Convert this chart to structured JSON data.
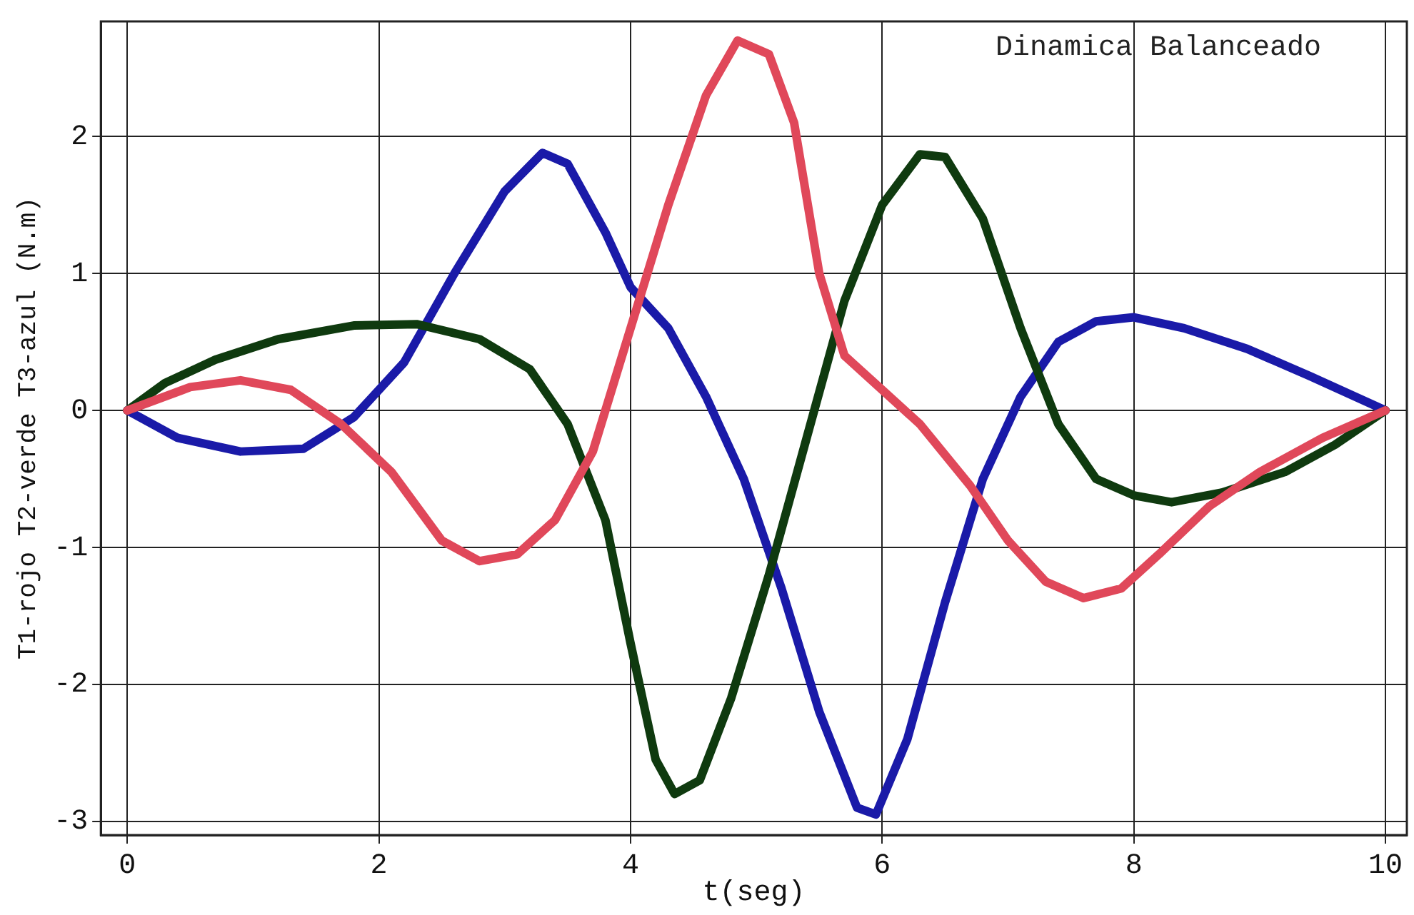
{
  "chart_data": {
    "type": "line",
    "title": "Dinamica Balanceado",
    "xlabel": "t(seg)",
    "ylabel": "T1-rojo T2-verde T3-azul (N.m)",
    "xlim": [
      -0.21,
      10.17
    ],
    "ylim": [
      -3.1,
      2.84
    ],
    "xticks": [
      0,
      2,
      4,
      6,
      8,
      10
    ],
    "yticks": [
      -3,
      -2,
      -1,
      0,
      1,
      2
    ],
    "grid": true,
    "marker": "none",
    "line_style": "solid",
    "series": [
      {
        "color": "#e0485a",
        "x": [
          0,
          0.5,
          0.9,
          1.3,
          1.7,
          2.1,
          2.5,
          2.8,
          3.1,
          3.4,
          3.7,
          4.0,
          4.3,
          4.6,
          4.85,
          5.1,
          5.3,
          5.5,
          5.7,
          6.0,
          6.3,
          6.7,
          7.0,
          7.3,
          7.6,
          7.9,
          8.2,
          8.6,
          9.0,
          9.5,
          10
        ],
        "values": [
          0,
          0.17,
          0.22,
          0.15,
          -0.1,
          -0.45,
          -0.95,
          -1.1,
          -1.05,
          -0.8,
          -0.3,
          0.6,
          1.5,
          2.3,
          2.7,
          2.6,
          2.1,
          1.0,
          0.4,
          0.15,
          -0.1,
          -0.55,
          -0.95,
          -1.25,
          -1.37,
          -1.3,
          -1.05,
          -0.7,
          -0.45,
          -0.2,
          0
        ]
      },
      {
        "color": "#0f3a0f",
        "x": [
          0,
          0.3,
          0.7,
          1.2,
          1.8,
          2.3,
          2.8,
          3.2,
          3.5,
          3.8,
          4.0,
          4.2,
          4.35,
          4.55,
          4.8,
          5.1,
          5.4,
          5.7,
          6.0,
          6.3,
          6.5,
          6.8,
          7.1,
          7.4,
          7.7,
          8.0,
          8.3,
          8.7,
          9.2,
          9.6,
          10
        ],
        "values": [
          0,
          0.2,
          0.37,
          0.52,
          0.62,
          0.63,
          0.52,
          0.3,
          -0.1,
          -0.8,
          -1.7,
          -2.55,
          -2.8,
          -2.7,
          -2.1,
          -1.2,
          -0.2,
          0.8,
          1.5,
          1.87,
          1.85,
          1.4,
          0.6,
          -0.1,
          -0.5,
          -0.62,
          -0.67,
          -0.6,
          -0.45,
          -0.25,
          0
        ]
      },
      {
        "color": "#1a1aa8",
        "x": [
          0,
          0.4,
          0.9,
          1.4,
          1.8,
          2.2,
          2.6,
          3.0,
          3.3,
          3.5,
          3.8,
          4.0,
          4.3,
          4.6,
          4.9,
          5.2,
          5.5,
          5.8,
          5.95,
          6.2,
          6.5,
          6.8,
          7.1,
          7.4,
          7.7,
          8.0,
          8.4,
          8.9,
          9.4,
          10
        ],
        "values": [
          0,
          -0.2,
          -0.3,
          -0.28,
          -0.05,
          0.35,
          1.0,
          1.6,
          1.88,
          1.8,
          1.3,
          0.9,
          0.6,
          0.1,
          -0.5,
          -1.3,
          -2.2,
          -2.9,
          -2.95,
          -2.4,
          -1.4,
          -0.5,
          0.1,
          0.5,
          0.65,
          0.68,
          0.6,
          0.45,
          0.25,
          0
        ]
      }
    ]
  }
}
